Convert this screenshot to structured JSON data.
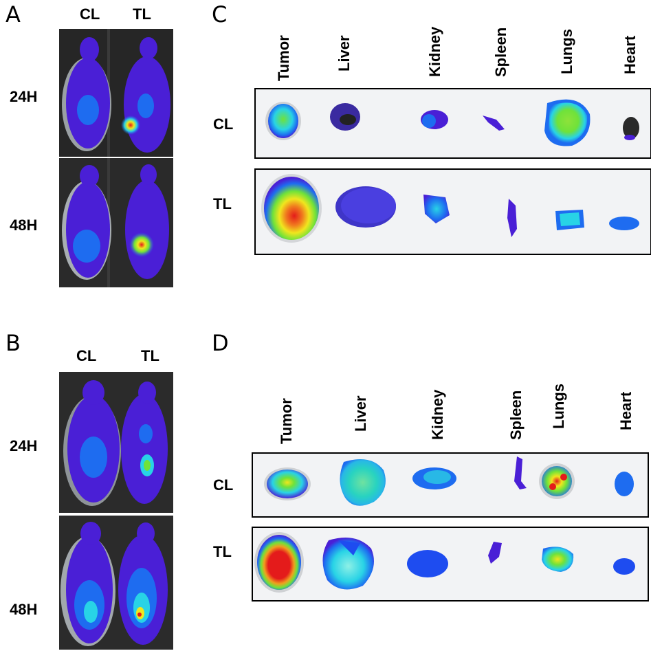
{
  "panels": {
    "A": {
      "letter": "A",
      "columns": [
        "CL",
        "TL"
      ],
      "rows": [
        "24H",
        "48H"
      ]
    },
    "B": {
      "letter": "B",
      "columns": [
        "CL",
        "TL"
      ],
      "rows": [
        "24H",
        "48H"
      ]
    },
    "C": {
      "letter": "C",
      "organs": [
        "Tumor",
        "Liver",
        "Kidney",
        "Spleen",
        "Lungs",
        "Heart"
      ],
      "rows": [
        "CL",
        "TL"
      ]
    },
    "D": {
      "letter": "D",
      "organs": [
        "Tumor",
        "Liver",
        "Kidney",
        "Spleen",
        "Lungs",
        "Heart"
      ],
      "rows": [
        "CL",
        "TL"
      ]
    }
  },
  "colors": {
    "background_dark": "#1f1f1f",
    "strip_background": "#f2f3f5",
    "signal_low": "#4a1fd6",
    "signal_mid_low": "#1e6cf0",
    "signal_mid": "#28d3e6",
    "signal_mid_high": "#6fe23a",
    "signal_high": "#f0e61e",
    "signal_max": "#e41b1b"
  }
}
